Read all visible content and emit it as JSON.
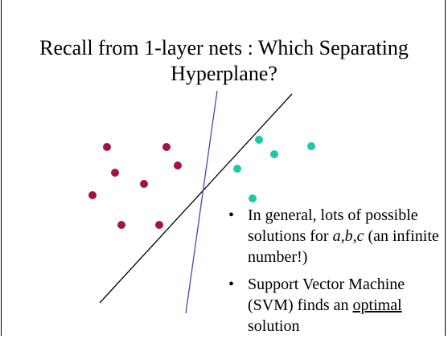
{
  "slide": {
    "title_line1": "Recall from 1-layer nets : Which Separating",
    "title_line2": "Hyperplane?",
    "bullet_symbol": "•",
    "bullet1": {
      "text_a": "In general, lots of possible solutions for ",
      "vars": "a,b,c",
      "text_b": " (an infinite number!)"
    },
    "bullet2": {
      "text_a": "Support Vector Machine (SVM) finds an ",
      "emph": "optimal",
      "text_b": " solution"
    }
  },
  "colors": {
    "class_a": "#a0144a",
    "class_b": "#22c7a3",
    "line_black": "#000000",
    "line_blue": "#3a4fb0"
  }
}
